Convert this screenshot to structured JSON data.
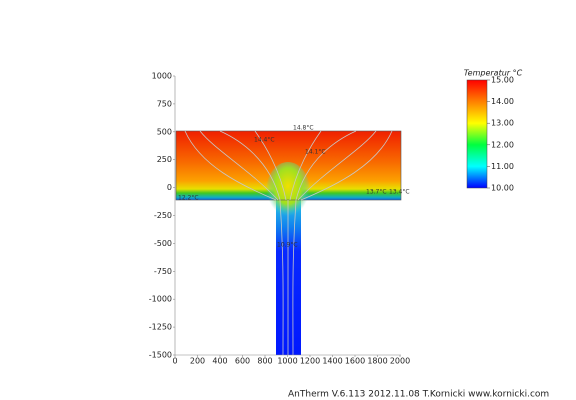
{
  "chart_data": {
    "type": "heatmap",
    "xlim": [
      0,
      2000
    ],
    "xticks": [
      0,
      200,
      400,
      600,
      800,
      1000,
      1200,
      1400,
      1600,
      1800,
      2000
    ],
    "ylim": [
      -1500,
      1000
    ],
    "yticks": [
      1000,
      750,
      500,
      250,
      0,
      -250,
      -500,
      -750,
      -1000,
      -1250,
      -1500
    ],
    "colorbar": {
      "title": "Temperatur °C",
      "clim": [
        10,
        15
      ],
      "ticks": [
        {
          "value": 15,
          "label": "15.00"
        },
        {
          "value": 14,
          "label": "14.00"
        },
        {
          "value": 13,
          "label": "13.00"
        },
        {
          "value": 12,
          "label": "12.00"
        },
        {
          "value": 11,
          "label": "11.00"
        },
        {
          "value": 10,
          "label": "10.00"
        }
      ]
    },
    "annotations": [
      "14.8°C",
      "14.4°C",
      "14.1°C",
      "13.7°C",
      "13.4°C",
      "12.2°C",
      "10.9°C"
    ],
    "footer": "AnTherm V.6.113 2012.11.08  T.Kornicki www.kornicki.com"
  }
}
